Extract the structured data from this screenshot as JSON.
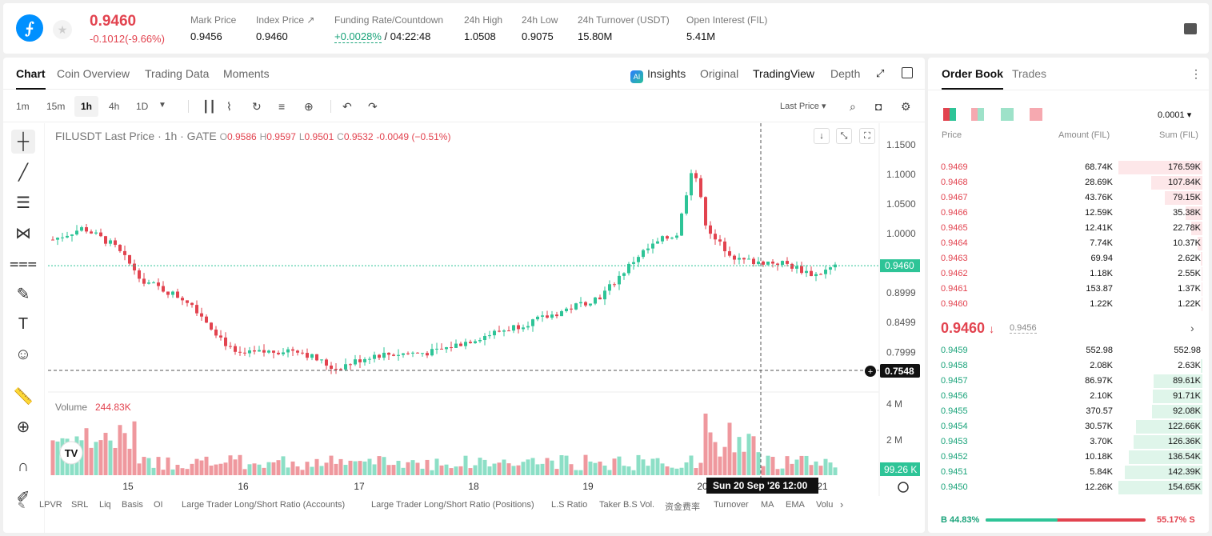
{
  "header": {
    "last_price": "0.9460",
    "change": "-0.1012(-9.66%)",
    "stats": [
      {
        "label": "Mark Price",
        "value": "0.9456"
      },
      {
        "label": "Index Price ↗",
        "value": "0.9460"
      },
      {
        "label": "Funding Rate/Countdown",
        "value": "+0.0028%",
        "value2": " / 04:22:48"
      },
      {
        "label": "24h High",
        "value": "1.0508"
      },
      {
        "label": "24h Low",
        "value": "0.9075"
      },
      {
        "label": "24h Turnover (USDT)",
        "value": "15.80M"
      },
      {
        "label": "Open Interest (FIL)",
        "value": "5.41M"
      }
    ]
  },
  "tabs": {
    "chart": "Chart",
    "coin_overview": "Coin Overview",
    "trading_data": "Trading Data",
    "moments": "Moments",
    "insights": "Insights",
    "original": "Original",
    "tradingview": "TradingView",
    "depth": "Depth"
  },
  "intervals": [
    "1m",
    "15m",
    "1h",
    "4h",
    "1D"
  ],
  "price_type": "Last Price",
  "legend": {
    "symbol": "FILUSDT Last Price · 1h · GATE",
    "o": "0.9586",
    "h": "0.9597",
    "l": "0.9501",
    "c": "0.9532",
    "chg": "-0.0049 (−0.51%)"
  },
  "volume": {
    "label": "Volume",
    "value": "244.83K",
    "axis_top": "4 M",
    "axis_mid": "2 M",
    "current": "99.26 K"
  },
  "crosshair": {
    "price": "0.7548",
    "time": "Sun 20 Sep '26   12:00"
  },
  "indicators": [
    "LPVR",
    "SRL",
    "Liq",
    "Basis",
    "OI",
    "Large Trader Long/Short Ratio (Accounts)",
    "Large Trader Long/Short Ratio (Positions)",
    "L.S Ratio",
    "Taker B.S Vol.",
    "资金费率",
    "Turnover",
    "MA",
    "EMA",
    "Volu"
  ],
  "chart_data": {
    "type": "candlestick",
    "y_ticks": [
      "1.1500",
      "1.1000",
      "1.0500",
      "1.0000",
      "0.9460",
      "0.8999",
      "0.8499",
      "0.7999"
    ],
    "x_ticks": [
      "15",
      "16",
      "17",
      "18",
      "19",
      "20",
      "21"
    ],
    "current_price": 0.946,
    "ylim": [
      0.73,
      1.165
    ],
    "colors": {
      "up": "#2ec497",
      "down": "#e2434f"
    }
  },
  "orderbook": {
    "tab1": "Order Book",
    "tab2": "Trades",
    "precision": "0.0001",
    "h_price": "Price",
    "h_amount": "Amount (FIL)",
    "h_sum": "Sum (FIL)",
    "asks": [
      [
        "0.9469",
        "68.74K",
        "176.59K",
        1.0
      ],
      [
        "0.9468",
        "28.69K",
        "107.84K",
        0.61
      ],
      [
        "0.9467",
        "43.76K",
        "79.15K",
        0.45
      ],
      [
        "0.9466",
        "12.59K",
        "35.38K",
        0.2
      ],
      [
        "0.9465",
        "12.41K",
        "22.78K",
        0.13
      ],
      [
        "0.9464",
        "7.74K",
        "10.37K",
        0.06
      ],
      [
        "0.9463",
        "69.94",
        "2.62K",
        0.015
      ],
      [
        "0.9462",
        "1.18K",
        "2.55K",
        0.014
      ],
      [
        "0.9461",
        "153.87",
        "1.37K",
        0.008
      ],
      [
        "0.9460",
        "1.22K",
        "1.22K",
        0.007
      ]
    ],
    "mid_price": "0.9460",
    "mark": "0.9456",
    "bids": [
      [
        "0.9459",
        "552.98",
        "552.98",
        0.004
      ],
      [
        "0.9458",
        "2.08K",
        "2.63K",
        0.017
      ],
      [
        "0.9457",
        "86.97K",
        "89.61K",
        0.58
      ],
      [
        "0.9456",
        "2.10K",
        "91.71K",
        0.59
      ],
      [
        "0.9455",
        "370.57",
        "92.08K",
        0.6
      ],
      [
        "0.9454",
        "30.57K",
        "122.66K",
        0.79
      ],
      [
        "0.9453",
        "3.70K",
        "126.36K",
        0.82
      ],
      [
        "0.9452",
        "10.18K",
        "136.54K",
        0.88
      ],
      [
        "0.9451",
        "5.84K",
        "142.39K",
        0.92
      ],
      [
        "0.9450",
        "12.26K",
        "154.65K",
        1.0
      ]
    ],
    "buy_ratio": "B 44.83%",
    "sell_ratio": "55.17% S",
    "buy_fraction": 0.4483
  }
}
